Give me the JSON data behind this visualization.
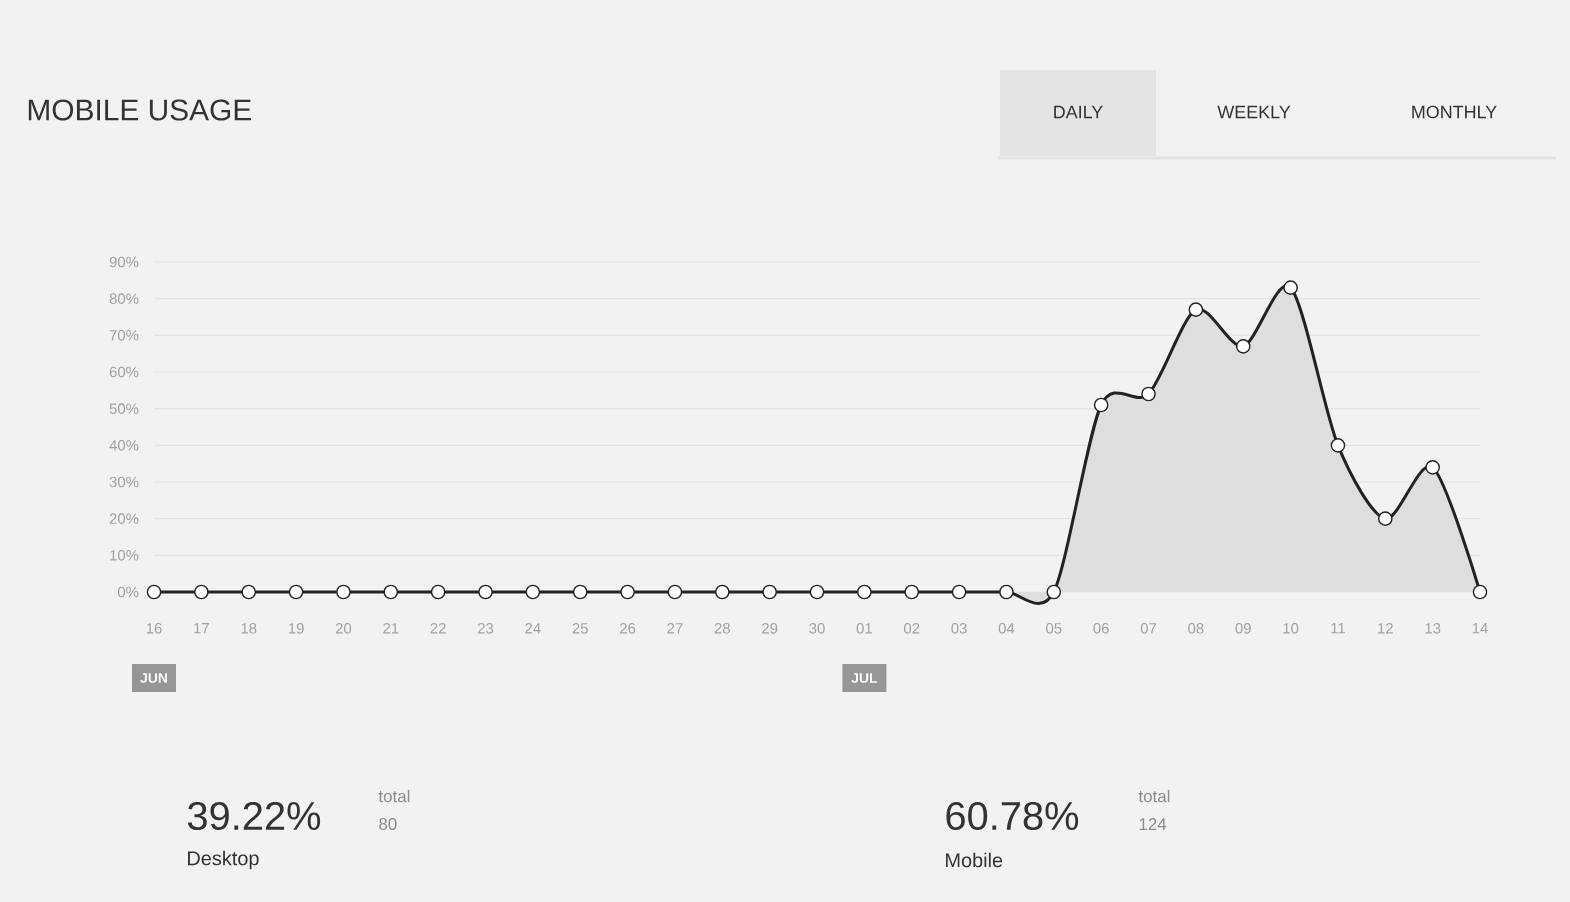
{
  "chart_data": {
    "type": "area",
    "title": "MOBILE USAGE",
    "categories": [
      "16",
      "17",
      "18",
      "19",
      "20",
      "21",
      "22",
      "23",
      "24",
      "25",
      "26",
      "27",
      "28",
      "29",
      "30",
      "01",
      "02",
      "03",
      "04",
      "05",
      "06",
      "07",
      "08",
      "09",
      "10",
      "11",
      "12",
      "13",
      "14"
    ],
    "series": [
      {
        "color": "#222222",
        "values": [
          0,
          0,
          0,
          0,
          0,
          0,
          0,
          0,
          0,
          0,
          0,
          0,
          0,
          0,
          0,
          0,
          0,
          0,
          0,
          0,
          51,
          54,
          77,
          67,
          83,
          40,
          20,
          34,
          0
        ]
      }
    ],
    "ylim": [
      0,
      90
    ],
    "yticks": [
      {
        "value": 0,
        "label": "0%"
      },
      {
        "value": 10,
        "label": "10%"
      },
      {
        "value": 20,
        "label": "20%"
      },
      {
        "value": 30,
        "label": "30%"
      },
      {
        "value": 40,
        "label": "40%"
      },
      {
        "value": 50,
        "label": "50%"
      },
      {
        "value": 60,
        "label": "60%"
      },
      {
        "value": 70,
        "label": "70%"
      },
      {
        "value": 80,
        "label": "80%"
      },
      {
        "value": 90,
        "label": "90%"
      }
    ],
    "grid": "y",
    "marker": "circle",
    "line_style": "solid",
    "annotations": [
      "JUN",
      "JUL",
      "DAILY",
      "WEEKLY",
      "MONTHLY",
      "39.22%",
      "total",
      "80",
      "Desktop",
      "60.78%",
      "total",
      "124",
      "Mobile"
    ]
  }
}
